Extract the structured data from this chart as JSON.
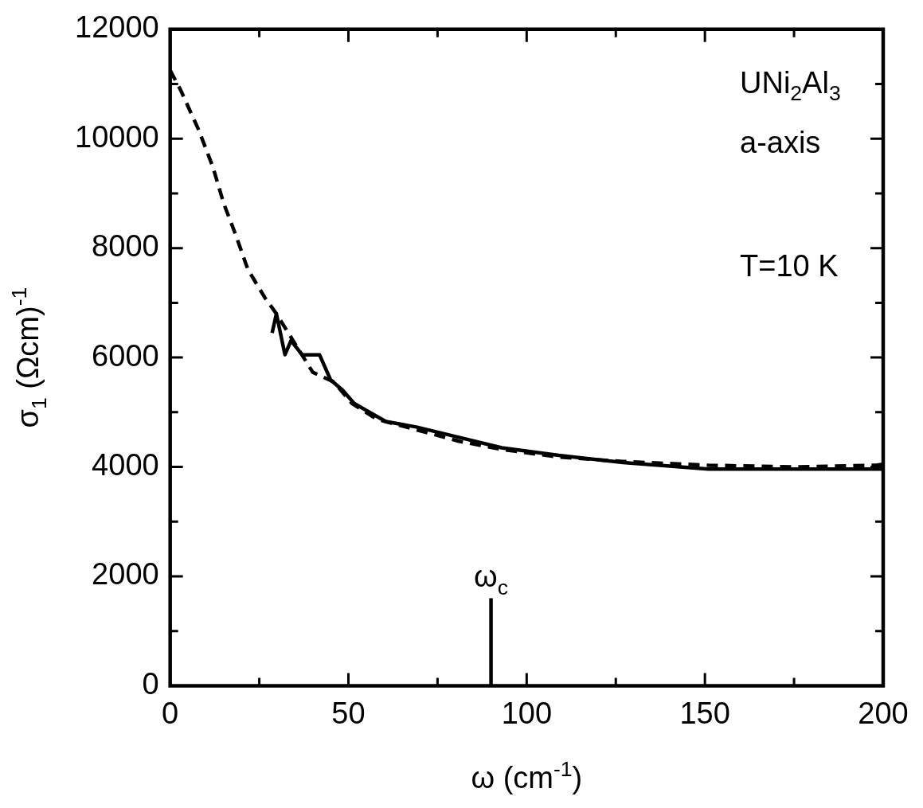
{
  "chart_data": {
    "type": "line",
    "xlabel": "ω (cm$^{-1}$)",
    "ylabel": "σ$_{1}$ (Ωcm)$^{-1}$",
    "xlim": [
      0,
      200
    ],
    "xticks": [
      0,
      {
        "value": 25,
        "label": null
      },
      50,
      {
        "value": 75,
        "label": null
      },
      100,
      {
        "value": 125,
        "label": null
      },
      150,
      {
        "value": 175,
        "label": null
      },
      200
    ],
    "ylim": [
      0,
      12000
    ],
    "yticks": [
      0,
      {
        "value": 1000,
        "label": null
      },
      2000,
      {
        "value": 3000,
        "label": null
      },
      4000,
      {
        "value": 5000,
        "label": null
      },
      6000,
      {
        "value": 7000,
        "label": null
      },
      8000,
      {
        "value": 9000,
        "label": null
      },
      10000,
      {
        "value": 11000,
        "label": null
      },
      12000
    ],
    "grid": false,
    "legend": false,
    "marker": "none",
    "series": [
      {
        "color": "#000000",
        "line_style": "dashed",
        "x": [
          0,
          3,
          8,
          12,
          15,
          18.4,
          21.8,
          26.6,
          29.8,
          40,
          46,
          51,
          58,
          69,
          81,
          93,
          109,
          127,
          151,
          175,
          198,
          200
        ],
        "values": [
          11250,
          10880,
          10160,
          9480,
          8820,
          8240,
          7610,
          7090,
          6800,
          5730,
          5550,
          5160,
          4870,
          4680,
          4470,
          4320,
          4180,
          4100,
          4030,
          4000,
          4030,
          4050
        ]
      },
      {
        "color": "#000000",
        "line_style": "solid",
        "x": [
          28.6,
          29.8,
          32.2,
          33.9,
          37,
          41.9,
          45,
          48.4,
          51.6,
          60.5,
          69,
          81,
          93,
          109,
          127,
          151,
          175,
          191,
          200
        ],
        "values": [
          6450,
          6800,
          6050,
          6310,
          6050,
          6050,
          5590,
          5400,
          5160,
          4830,
          4730,
          4540,
          4350,
          4210,
          4080,
          3960,
          3960,
          3960,
          3960
        ]
      },
      {
        "color": "#000000",
        "line_style": "solid",
        "x": [
          90,
          90
        ],
        "values": [
          0,
          1600
        ]
      }
    ],
    "annotations": [
      {
        "text": "ω$_{c}$",
        "x": 90,
        "y": 1600
      },
      "UNi$_{2}$Al$_{3}$",
      "a-axis",
      "T=10 K"
    ]
  }
}
